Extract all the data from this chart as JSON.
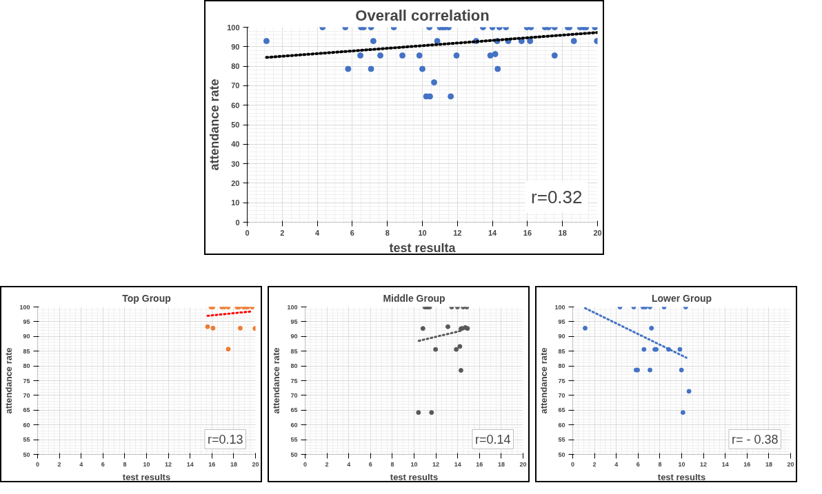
{
  "chart_data": [
    {
      "type": "scatter",
      "title": "Overall correlation",
      "xlabel": "test resulta",
      "ylabel": "attendance rate",
      "xlim": [
        0,
        20
      ],
      "ylim": [
        0,
        100
      ],
      "xticks": [
        0,
        2,
        4,
        6,
        8,
        10,
        12,
        14,
        16,
        18,
        20
      ],
      "yticks": [
        0,
        10,
        20,
        30,
        40,
        50,
        60,
        70,
        80,
        90,
        100
      ],
      "grid": true,
      "marker": "circle",
      "annotations": [
        "r=0.32"
      ],
      "series": [
        {
          "color": "#4472c4",
          "x": [
            1.1,
            4.3,
            5.6,
            6.5,
            6.65,
            7.07,
            8.37,
            10.4,
            11.0,
            11.16,
            11.3,
            11.5,
            13.46,
            14.0,
            14.4,
            14.77,
            15.97,
            16.2,
            17.0,
            17.2,
            17.55,
            18.3,
            18.4,
            19.0,
            19.2,
            19.35,
            19.85,
            7.2,
            10.85,
            13.07,
            14.27,
            14.9,
            15.66,
            16.15,
            18.65,
            19.97,
            6.46,
            7.6,
            8.86,
            9.83,
            11.95,
            13.88,
            14.16,
            17.55,
            5.76,
            7.07,
            10.0,
            14.3,
            10.67,
            10.22,
            10.43,
            11.62
          ],
          "values": [
            92.9,
            100,
            100,
            100,
            100,
            100,
            100,
            100,
            100,
            100,
            100,
            100,
            100,
            100,
            100,
            100,
            100,
            100,
            100,
            100,
            100,
            100,
            100,
            100,
            100,
            100,
            100,
            92.9,
            92.9,
            92.9,
            92.9,
            92.9,
            92.9,
            92.9,
            92.9,
            92.9,
            85.5,
            85.5,
            85.5,
            85.5,
            85.5,
            85.5,
            86.2,
            85.5,
            78.6,
            78.6,
            78.6,
            78.6,
            71.7,
            64.5,
            64.5,
            64.5
          ]
        },
        {
          "type": "line",
          "marker": "none",
          "line_style": "dotted",
          "color": "#000000",
          "x": [
            1.1,
            20
          ],
          "values": [
            84.5,
            97.3
          ]
        }
      ]
    },
    {
      "type": "scatter",
      "title": "Top Group",
      "xlabel": "test results",
      "ylabel": "attendance rate",
      "xlim": [
        0,
        20
      ],
      "ylim": [
        50,
        100
      ],
      "xticks": [
        0,
        2,
        4,
        6,
        8,
        10,
        12,
        14,
        16,
        18,
        20
      ],
      "yticks": [
        50,
        55,
        60,
        65,
        70,
        75,
        80,
        85,
        90,
        95,
        100
      ],
      "grid": true,
      "marker": "circle",
      "annotations": [
        "r=0.13"
      ],
      "series": [
        {
          "color": "#ed7d31",
          "x": [
            15.9,
            16.1,
            16.9,
            17.15,
            17.5,
            18.3,
            18.5,
            18.9,
            19.1,
            19.3,
            19.7,
            15.6,
            16.1,
            18.6,
            19.95,
            17.5
          ],
          "values": [
            100,
            100,
            100,
            100,
            100,
            100,
            100,
            100,
            100,
            100,
            100,
            93.3,
            92.8,
            92.8,
            92.7,
            85.7
          ]
        },
        {
          "type": "line",
          "marker": "none",
          "line_style": "dotted",
          "color": "#ff0000",
          "x": [
            15.6,
            19.7
          ],
          "values": [
            97.0,
            98.5
          ]
        }
      ]
    },
    {
      "type": "scatter",
      "title": "Middle Group",
      "xlabel": "test results",
      "ylabel": "attendance rate",
      "xlim": [
        0,
        20
      ],
      "ylim": [
        50,
        100
      ],
      "xticks": [
        0,
        2,
        4,
        6,
        8,
        10,
        12,
        14,
        16,
        18,
        20
      ],
      "yticks": [
        50,
        55,
        60,
        65,
        70,
        75,
        80,
        85,
        90,
        95,
        100
      ],
      "grid": true,
      "marker": "circle",
      "annotations": [
        "r=0.14"
      ],
      "series": [
        {
          "color": "#595959",
          "x": [
            10.98,
            11.13,
            11.28,
            11.44,
            13.45,
            13.98,
            14.5,
            14.83,
            10.81,
            13.1,
            14.3,
            14.4,
            14.7,
            14.9,
            11.97,
            13.87,
            14.2,
            14.3,
            10.4,
            11.6
          ],
          "values": [
            100,
            100,
            100,
            100,
            100,
            100,
            100,
            100,
            92.7,
            93.3,
            92.6,
            92.7,
            93.0,
            92.7,
            85.6,
            85.6,
            86.6,
            78.5,
            64.2,
            64.2
          ]
        },
        {
          "type": "line",
          "marker": "none",
          "line_style": "dotted",
          "color": "#595959",
          "x": [
            10.43,
            14.3
          ],
          "values": [
            88.5,
            91.9
          ]
        }
      ]
    },
    {
      "type": "scatter",
      "title": "Lower Group",
      "xlabel": "test results",
      "ylabel": "attendance rate",
      "xlim": [
        0,
        20
      ],
      "ylim": [
        50,
        100
      ],
      "xticks": [
        0,
        2,
        4,
        6,
        8,
        10,
        12,
        14,
        16,
        18,
        20
      ],
      "yticks": [
        50,
        55,
        60,
        65,
        70,
        75,
        80,
        85,
        90,
        95,
        100
      ],
      "grid": true,
      "marker": "circle",
      "annotations": [
        "r= - 0.38"
      ],
      "series": [
        {
          "color": "#4472c4",
          "x": [
            4.34,
            5.6,
            6.44,
            6.68,
            7.09,
            8.39,
            10.37,
            1.14,
            7.23,
            6.54,
            7.54,
            7.66,
            8.8,
            9.84,
            5.82,
            5.95,
            7.09,
            9.98,
            10.12,
            10.67
          ],
          "values": [
            100,
            100,
            100,
            100,
            100,
            100,
            100,
            92.8,
            92.8,
            85.6,
            85.6,
            85.6,
            85.6,
            85.6,
            78.6,
            78.6,
            78.6,
            78.6,
            64.2,
            71.4
          ]
        },
        {
          "type": "line",
          "marker": "none",
          "line_style": "dotted",
          "color": "#4472c4",
          "x": [
            1.14,
            10.43
          ],
          "values": [
            99.6,
            82.8
          ]
        }
      ]
    }
  ]
}
